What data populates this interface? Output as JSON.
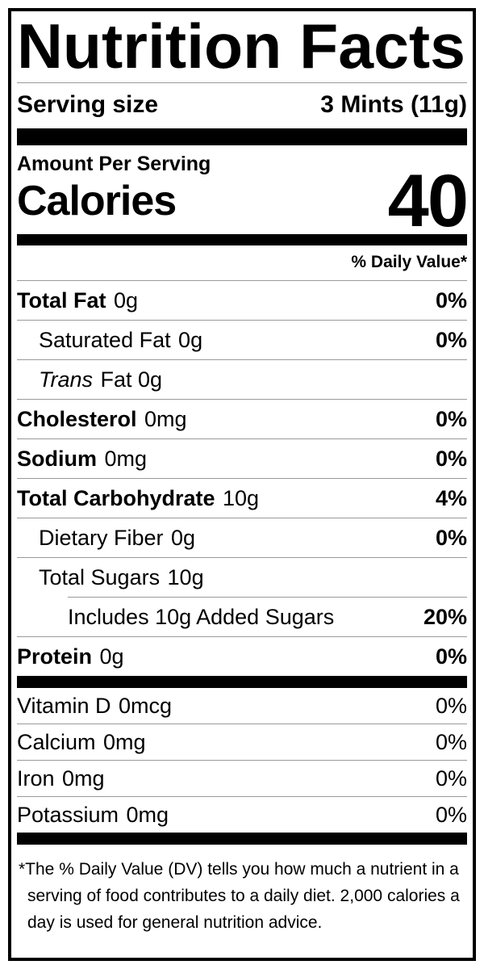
{
  "label": {
    "title": "Nutrition Facts",
    "serving": {
      "label": "Serving size",
      "value": "3 Mints (11g)"
    },
    "amount_per_serving": "Amount Per Serving",
    "calories": {
      "label": "Calories",
      "value": "40"
    },
    "daily_value_header": "% Daily Value*",
    "nutrients": [
      {
        "name": "Total Fat",
        "amount": "0g",
        "pct": "0%"
      },
      {
        "name": "Saturated Fat",
        "amount": "0g",
        "pct": "0%"
      },
      {
        "name": "Trans",
        "amount": "Fat 0g",
        "pct": ""
      },
      {
        "name": "Cholesterol",
        "amount": "0mg",
        "pct": "0%"
      },
      {
        "name": "Sodium",
        "amount": "0mg",
        "pct": "0%"
      },
      {
        "name": "Total Carbohydrate",
        "amount": "10g",
        "pct": "4%"
      },
      {
        "name": "Dietary Fiber",
        "amount": "0g",
        "pct": "0%"
      },
      {
        "name": "Total Sugars",
        "amount": "10g",
        "pct": ""
      },
      {
        "name": "Includes 10g Added Sugars",
        "amount": "",
        "pct": "20%"
      },
      {
        "name": "Protein",
        "amount": "0g",
        "pct": "0%"
      }
    ],
    "vitamins": [
      {
        "name": "Vitamin D",
        "amount": "0mcg",
        "pct": "0%"
      },
      {
        "name": "Calcium",
        "amount": "0mg",
        "pct": "0%"
      },
      {
        "name": "Iron",
        "amount": "0mg",
        "pct": "0%"
      },
      {
        "name": "Potassium",
        "amount": "0mg",
        "pct": "0%"
      }
    ],
    "footnote_lines": [
      "*The % Daily Value (DV) tells you how much a nutrient in a",
      "serving of food contributes to a daily diet. 2,000 calories a",
      "day is used for general nutrition advice."
    ]
  },
  "colors": {
    "text": "#000000",
    "rule_thin": "#9a9a9a",
    "rule_thick": "#000000",
    "background": "#ffffff"
  }
}
